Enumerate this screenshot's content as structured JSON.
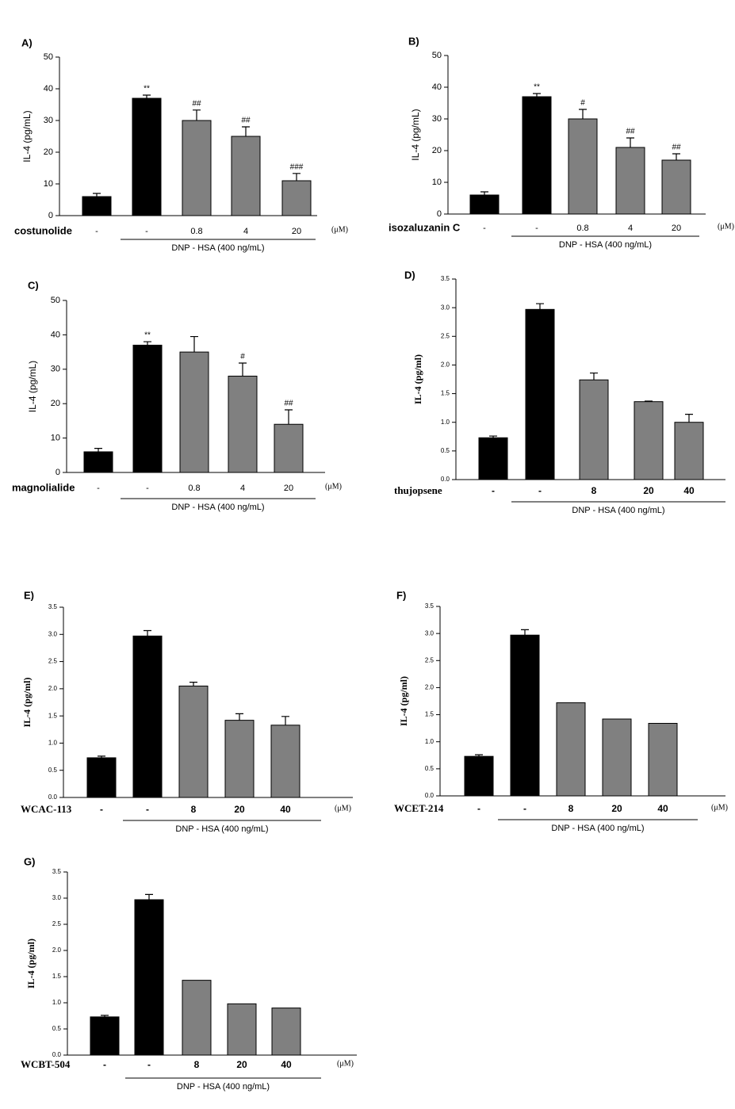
{
  "chart_data": [
    {
      "type": "bar",
      "panel_label": "A)",
      "y_label": "IL-4 (pg/mL)",
      "treatment_label": "costunolide",
      "unit_label": "(μM)",
      "group_label": "DNP - HSA (400 ng/mL)",
      "categories": [
        "-",
        "-",
        "0.8",
        "4",
        "20"
      ],
      "values": [
        6,
        37,
        30,
        25,
        11
      ],
      "errors": [
        1,
        1,
        3.3,
        3,
        2.3
      ],
      "annotations": [
        null,
        "**",
        "##",
        "##",
        "###"
      ],
      "colors": [
        "#000000",
        "#000000",
        "#808080",
        "#808080",
        "#808080"
      ],
      "ylim": [
        0,
        50
      ],
      "yticks": [
        0,
        10,
        20,
        30,
        40,
        50
      ]
    },
    {
      "type": "bar",
      "panel_label": "B)",
      "y_label": "IL-4 (pg/mL)",
      "treatment_label": "isozaluzanin C",
      "unit_label": "(μM)",
      "group_label": "DNP - HSA (400 ng/mL)",
      "categories": [
        "-",
        "-",
        "0.8",
        "4",
        "20"
      ],
      "values": [
        6,
        37,
        30,
        21,
        17
      ],
      "errors": [
        1,
        1,
        3,
        3,
        2
      ],
      "annotations": [
        null,
        "**",
        "#",
        "##",
        "##"
      ],
      "colors": [
        "#000000",
        "#000000",
        "#808080",
        "#808080",
        "#808080"
      ],
      "ylim": [
        0,
        50
      ],
      "yticks": [
        0,
        10,
        20,
        30,
        40,
        50
      ]
    },
    {
      "type": "bar",
      "panel_label": "C)",
      "y_label": "IL-4 (pg/mL)",
      "treatment_label": "magnolialide",
      "unit_label": "(μM)",
      "group_label": "DNP - HSA (400 ng/mL)",
      "categories": [
        "-",
        "-",
        "0.8",
        "4",
        "20"
      ],
      "values": [
        6,
        37,
        35,
        28,
        14
      ],
      "errors": [
        1,
        1,
        4.5,
        3.8,
        4.2
      ],
      "annotations": [
        null,
        "**",
        null,
        "#",
        "##"
      ],
      "colors": [
        "#000000",
        "#000000",
        "#808080",
        "#808080",
        "#808080"
      ],
      "ylim": [
        0,
        50
      ],
      "yticks": [
        0,
        10,
        20,
        30,
        40,
        50
      ]
    },
    {
      "type": "bar",
      "panel_label": "D)",
      "y_label": "IL-4 (pg/ml)",
      "treatment_label": "thujopsene",
      "group_label": "DNP - HSA (400 ng/mL)",
      "categories": [
        "-",
        "-",
        "8",
        "20",
        "40"
      ],
      "values": [
        0.73,
        2.97,
        1.74,
        1.36,
        1.0
      ],
      "errors": [
        0.03,
        0.1,
        0.12,
        0.01,
        0.14
      ],
      "colors": [
        "#000000",
        "#000000",
        "#808080",
        "#808080",
        "#808080"
      ],
      "ylim": [
        0,
        3.5
      ],
      "yticks": [
        {
          "value": 0,
          "label": "0.0"
        },
        0.5,
        {
          "value": 1,
          "label": "1.0"
        },
        1.5,
        {
          "value": 2,
          "label": "2.0"
        },
        2.5,
        {
          "value": 3,
          "label": "3.0"
        },
        3.5
      ]
    },
    {
      "type": "bar",
      "panel_label": "E)",
      "y_label": "IL-4 (pg/ml)",
      "treatment_label": "WCAC-113",
      "unit_label": "(μM)",
      "group_label": "DNP - HSA (400 ng/mL)",
      "categories": [
        "-",
        "-",
        "8",
        "20",
        "40"
      ],
      "values": [
        0.73,
        2.97,
        2.05,
        1.42,
        1.33
      ],
      "errors": [
        0.03,
        0.1,
        0.07,
        0.12,
        0.16
      ],
      "colors": [
        "#000000",
        "#000000",
        "#808080",
        "#808080",
        "#808080"
      ],
      "ylim": [
        0,
        3.5
      ],
      "yticks": [
        {
          "value": 0,
          "label": "0.0"
        },
        0.5,
        {
          "value": 1,
          "label": "1.0"
        },
        1.5,
        {
          "value": 2,
          "label": "2.0"
        },
        2.5,
        {
          "value": 3,
          "label": "3.0"
        },
        3.5
      ]
    },
    {
      "type": "bar",
      "panel_label": "F)",
      "y_label": "IL-4 (pg/ml)",
      "treatment_label": "WCET-214",
      "unit_label": "(μM)",
      "group_label": "DNP - HSA (400 ng/mL)",
      "categories": [
        "-",
        "-",
        "8",
        "20",
        "40"
      ],
      "values": [
        0.73,
        2.97,
        1.72,
        1.42,
        1.34
      ],
      "errors": [
        0.03,
        0.1,
        null,
        null,
        null
      ],
      "colors": [
        "#000000",
        "#000000",
        "#808080",
        "#808080",
        "#808080"
      ],
      "ylim": [
        0,
        3.5
      ],
      "yticks": [
        {
          "value": 0,
          "label": "0.0"
        },
        0.5,
        {
          "value": 1,
          "label": "1.0"
        },
        1.5,
        {
          "value": 2,
          "label": "2.0"
        },
        2.5,
        {
          "value": 3,
          "label": "3.0"
        },
        3.5
      ]
    },
    {
      "type": "bar",
      "panel_label": "G)",
      "y_label": "IL-4 (pg/ml)",
      "treatment_label": "WCBT-504",
      "unit_label": "(μM)",
      "group_label": "DNP - HSA (400 ng/mL)",
      "categories": [
        "-",
        "-",
        "8",
        "20",
        "40"
      ],
      "values": [
        0.73,
        2.97,
        1.43,
        0.98,
        0.9
      ],
      "errors": [
        0.03,
        0.1,
        null,
        null,
        null
      ],
      "colors": [
        "#000000",
        "#000000",
        "#808080",
        "#808080",
        "#808080"
      ],
      "ylim": [
        0,
        3.5
      ],
      "yticks": [
        {
          "value": 0,
          "label": "0.0"
        },
        0.5,
        {
          "value": 1,
          "label": "1.0"
        },
        1.5,
        {
          "value": 2,
          "label": "2.0"
        },
        2.5,
        {
          "value": 3,
          "label": "3.0"
        },
        3.5
      ]
    }
  ]
}
